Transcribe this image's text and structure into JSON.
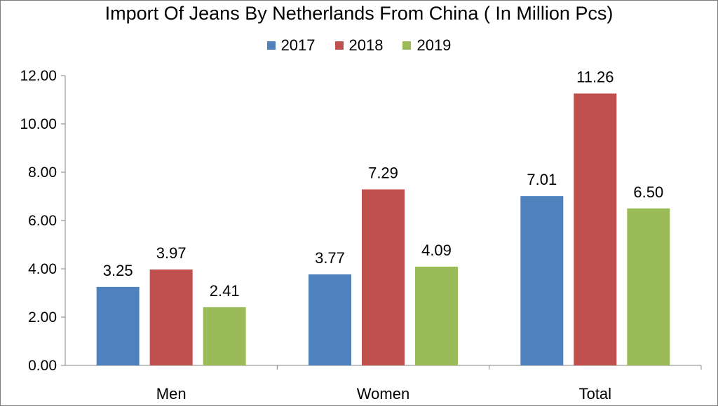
{
  "chart_data": {
    "type": "bar",
    "title": "Import Of Jeans By Netherlands From China ( In Million Pcs)",
    "categories": [
      "Men",
      "Women",
      "Total"
    ],
    "series": [
      {
        "name": "2017",
        "color": "#4f81bd",
        "values": [
          3.25,
          3.77,
          7.01
        ],
        "labels": [
          "3.25",
          "3.77",
          "7.01"
        ]
      },
      {
        "name": "2018",
        "color": "#c0504d",
        "values": [
          3.97,
          7.29,
          11.26
        ],
        "labels": [
          "3.97",
          "7.29",
          "11.26"
        ]
      },
      {
        "name": "2019",
        "color": "#9bbb59",
        "values": [
          2.41,
          4.09,
          6.5
        ],
        "labels": [
          "2.41",
          "4.09",
          "6.50"
        ]
      }
    ],
    "yticks": [
      "0.00",
      "2.00",
      "4.00",
      "6.00",
      "8.00",
      "10.00",
      "12.00"
    ],
    "ylim": [
      0,
      12
    ],
    "legend_position": "top-center",
    "grid": false
  }
}
